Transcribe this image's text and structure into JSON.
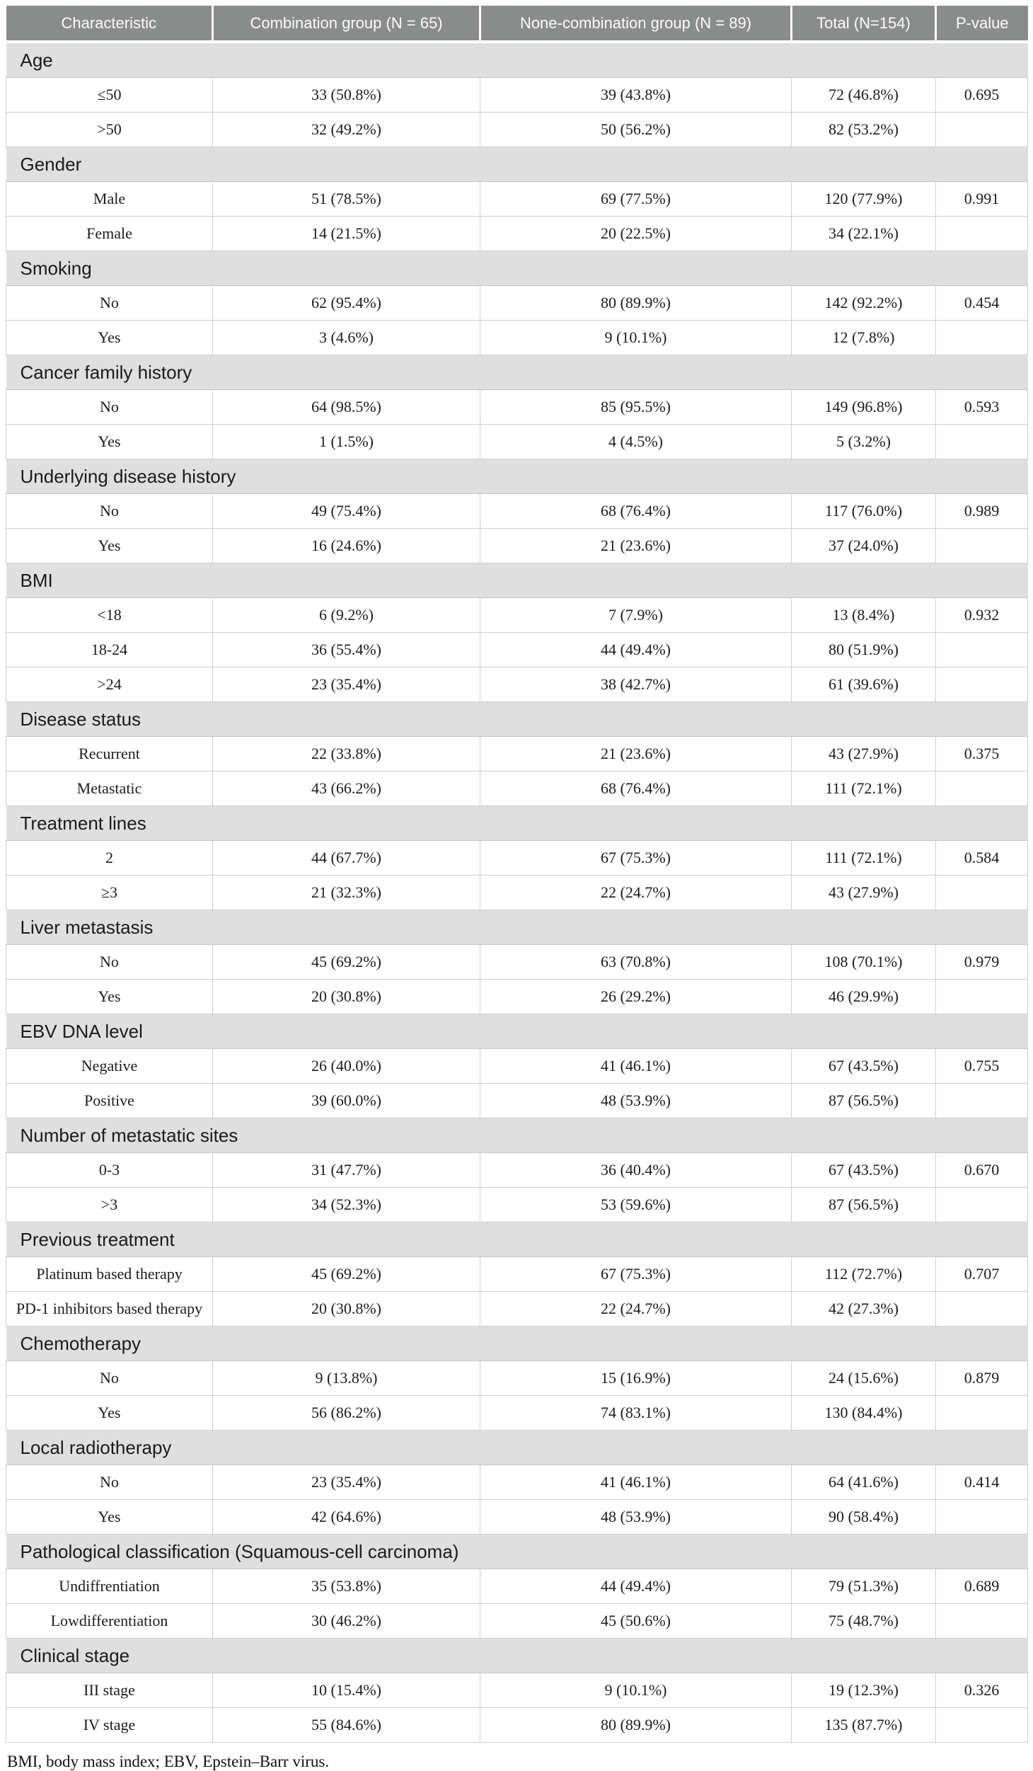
{
  "table": {
    "columns": [
      "Characteristic",
      "Combination group (N = 65)",
      "None-combination group (N = 89)",
      "Total (N=154)",
      "P-value"
    ],
    "sections": [
      {
        "label": "Age",
        "rows": [
          {
            "label": "≤50",
            "values": [
              "33 (50.8%)",
              "39 (43.8%)",
              "72 (46.8%)",
              "0.695"
            ]
          },
          {
            "label": ">50",
            "values": [
              "32 (49.2%)",
              "50 (56.2%)",
              "82 (53.2%)",
              ""
            ]
          }
        ]
      },
      {
        "label": "Gender",
        "rows": [
          {
            "label": "Male",
            "values": [
              "51 (78.5%)",
              "69 (77.5%)",
              "120 (77.9%)",
              "0.991"
            ]
          },
          {
            "label": "Female",
            "values": [
              "14 (21.5%)",
              "20 (22.5%)",
              "34 (22.1%)",
              ""
            ]
          }
        ]
      },
      {
        "label": "Smoking",
        "rows": [
          {
            "label": "No",
            "values": [
              "62 (95.4%)",
              "80 (89.9%)",
              "142 (92.2%)",
              "0.454"
            ]
          },
          {
            "label": "Yes",
            "values": [
              "3 (4.6%)",
              "9 (10.1%)",
              "12 (7.8%)",
              ""
            ]
          }
        ]
      },
      {
        "label": "Cancer family history",
        "rows": [
          {
            "label": "No",
            "values": [
              "64 (98.5%)",
              "85 (95.5%)",
              "149 (96.8%)",
              "0.593"
            ]
          },
          {
            "label": "Yes",
            "values": [
              "1 (1.5%)",
              "4 (4.5%)",
              "5 (3.2%)",
              ""
            ]
          }
        ]
      },
      {
        "label": "Underlying disease history",
        "rows": [
          {
            "label": "No",
            "values": [
              "49 (75.4%)",
              "68 (76.4%)",
              "117 (76.0%)",
              "0.989"
            ]
          },
          {
            "label": "Yes",
            "values": [
              "16 (24.6%)",
              "21 (23.6%)",
              "37 (24.0%)",
              ""
            ]
          }
        ]
      },
      {
        "label": "BMI",
        "rows": [
          {
            "label": "<18",
            "values": [
              "6 (9.2%)",
              "7 (7.9%)",
              "13 (8.4%)",
              "0.932"
            ]
          },
          {
            "label": "18-24",
            "values": [
              "36 (55.4%)",
              "44 (49.4%)",
              "80 (51.9%)",
              ""
            ]
          },
          {
            "label": ">24",
            "values": [
              "23 (35.4%)",
              "38 (42.7%)",
              "61 (39.6%)",
              ""
            ]
          }
        ]
      },
      {
        "label": "Disease status",
        "rows": [
          {
            "label": "Recurrent",
            "values": [
              "22 (33.8%)",
              "21 (23.6%)",
              "43 (27.9%)",
              "0.375"
            ]
          },
          {
            "label": "Metastatic",
            "values": [
              "43 (66.2%)",
              "68 (76.4%)",
              "111 (72.1%)",
              ""
            ]
          }
        ]
      },
      {
        "label": "Treatment lines",
        "rows": [
          {
            "label": "2",
            "values": [
              "44 (67.7%)",
              "67 (75.3%)",
              "111 (72.1%)",
              "0.584"
            ]
          },
          {
            "label": "≥3",
            "values": [
              "21 (32.3%)",
              "22 (24.7%)",
              "43 (27.9%)",
              ""
            ]
          }
        ]
      },
      {
        "label": "Liver metastasis",
        "rows": [
          {
            "label": "No",
            "values": [
              "45 (69.2%)",
              "63 (70.8%)",
              "108 (70.1%)",
              "0.979"
            ]
          },
          {
            "label": "Yes",
            "values": [
              "20 (30.8%)",
              "26 (29.2%)",
              "46 (29.9%)",
              ""
            ]
          }
        ]
      },
      {
        "label": "EBV DNA level",
        "rows": [
          {
            "label": "Negative",
            "values": [
              "26 (40.0%)",
              "41 (46.1%)",
              "67 (43.5%)",
              "0.755"
            ]
          },
          {
            "label": "Positive",
            "values": [
              "39 (60.0%)",
              "48 (53.9%)",
              "87 (56.5%)",
              ""
            ]
          }
        ]
      },
      {
        "label": "Number of metastatic sites",
        "rows": [
          {
            "label": "0-3",
            "values": [
              "31 (47.7%)",
              "36 (40.4%)",
              "67 (43.5%)",
              "0.670"
            ]
          },
          {
            "label": ">3",
            "values": [
              "34 (52.3%)",
              "53 (59.6%)",
              "87 (56.5%)",
              ""
            ]
          }
        ]
      },
      {
        "label": "Previous treatment",
        "rows": [
          {
            "label": "Platinum based therapy",
            "values": [
              "45 (69.2%)",
              "67 (75.3%)",
              "112 (72.7%)",
              "0.707"
            ]
          },
          {
            "label": "PD-1 inhibitors based therapy",
            "values": [
              "20 (30.8%)",
              "22 (24.7%)",
              "42 (27.3%)",
              ""
            ]
          }
        ]
      },
      {
        "label": "Chemotherapy",
        "rows": [
          {
            "label": "No",
            "values": [
              "9 (13.8%)",
              "15 (16.9%)",
              "24 (15.6%)",
              "0.879"
            ]
          },
          {
            "label": "Yes",
            "values": [
              "56 (86.2%)",
              "74 (83.1%)",
              "130 (84.4%)",
              ""
            ]
          }
        ]
      },
      {
        "label": "Local radiotherapy",
        "rows": [
          {
            "label": "No",
            "values": [
              "23 (35.4%)",
              "41 (46.1%)",
              "64 (41.6%)",
              "0.414"
            ]
          },
          {
            "label": "Yes",
            "values": [
              "42 (64.6%)",
              "48 (53.9%)",
              "90 (58.4%)",
              ""
            ]
          }
        ]
      },
      {
        "label": "Pathological classification (Squamous-cell carcinoma)",
        "rows": [
          {
            "label": "Undiffrentiation",
            "values": [
              "35 (53.8%)",
              "44 (49.4%)",
              "79 (51.3%)",
              "0.689"
            ]
          },
          {
            "label": "Lowdifferentiation",
            "values": [
              "30 (46.2%)",
              "45 (50.6%)",
              "75 (48.7%)",
              ""
            ]
          }
        ]
      },
      {
        "label": "Clinical stage",
        "rows": [
          {
            "label": "III stage",
            "values": [
              "10 (15.4%)",
              "9 (10.1%)",
              "19 (12.3%)",
              "0.326"
            ]
          },
          {
            "label": "IV stage",
            "values": [
              "55 (84.6%)",
              "80 (89.9%)",
              "135 (87.7%)",
              ""
            ]
          }
        ]
      }
    ],
    "footnote": "BMI, body mass index; EBV, Epstein–Barr virus.",
    "colors": {
      "header_bg": "#8a8c8c",
      "header_text": "#fbfbfb",
      "section_bg": "#dfdfdf",
      "row_border": "#cecece"
    }
  }
}
